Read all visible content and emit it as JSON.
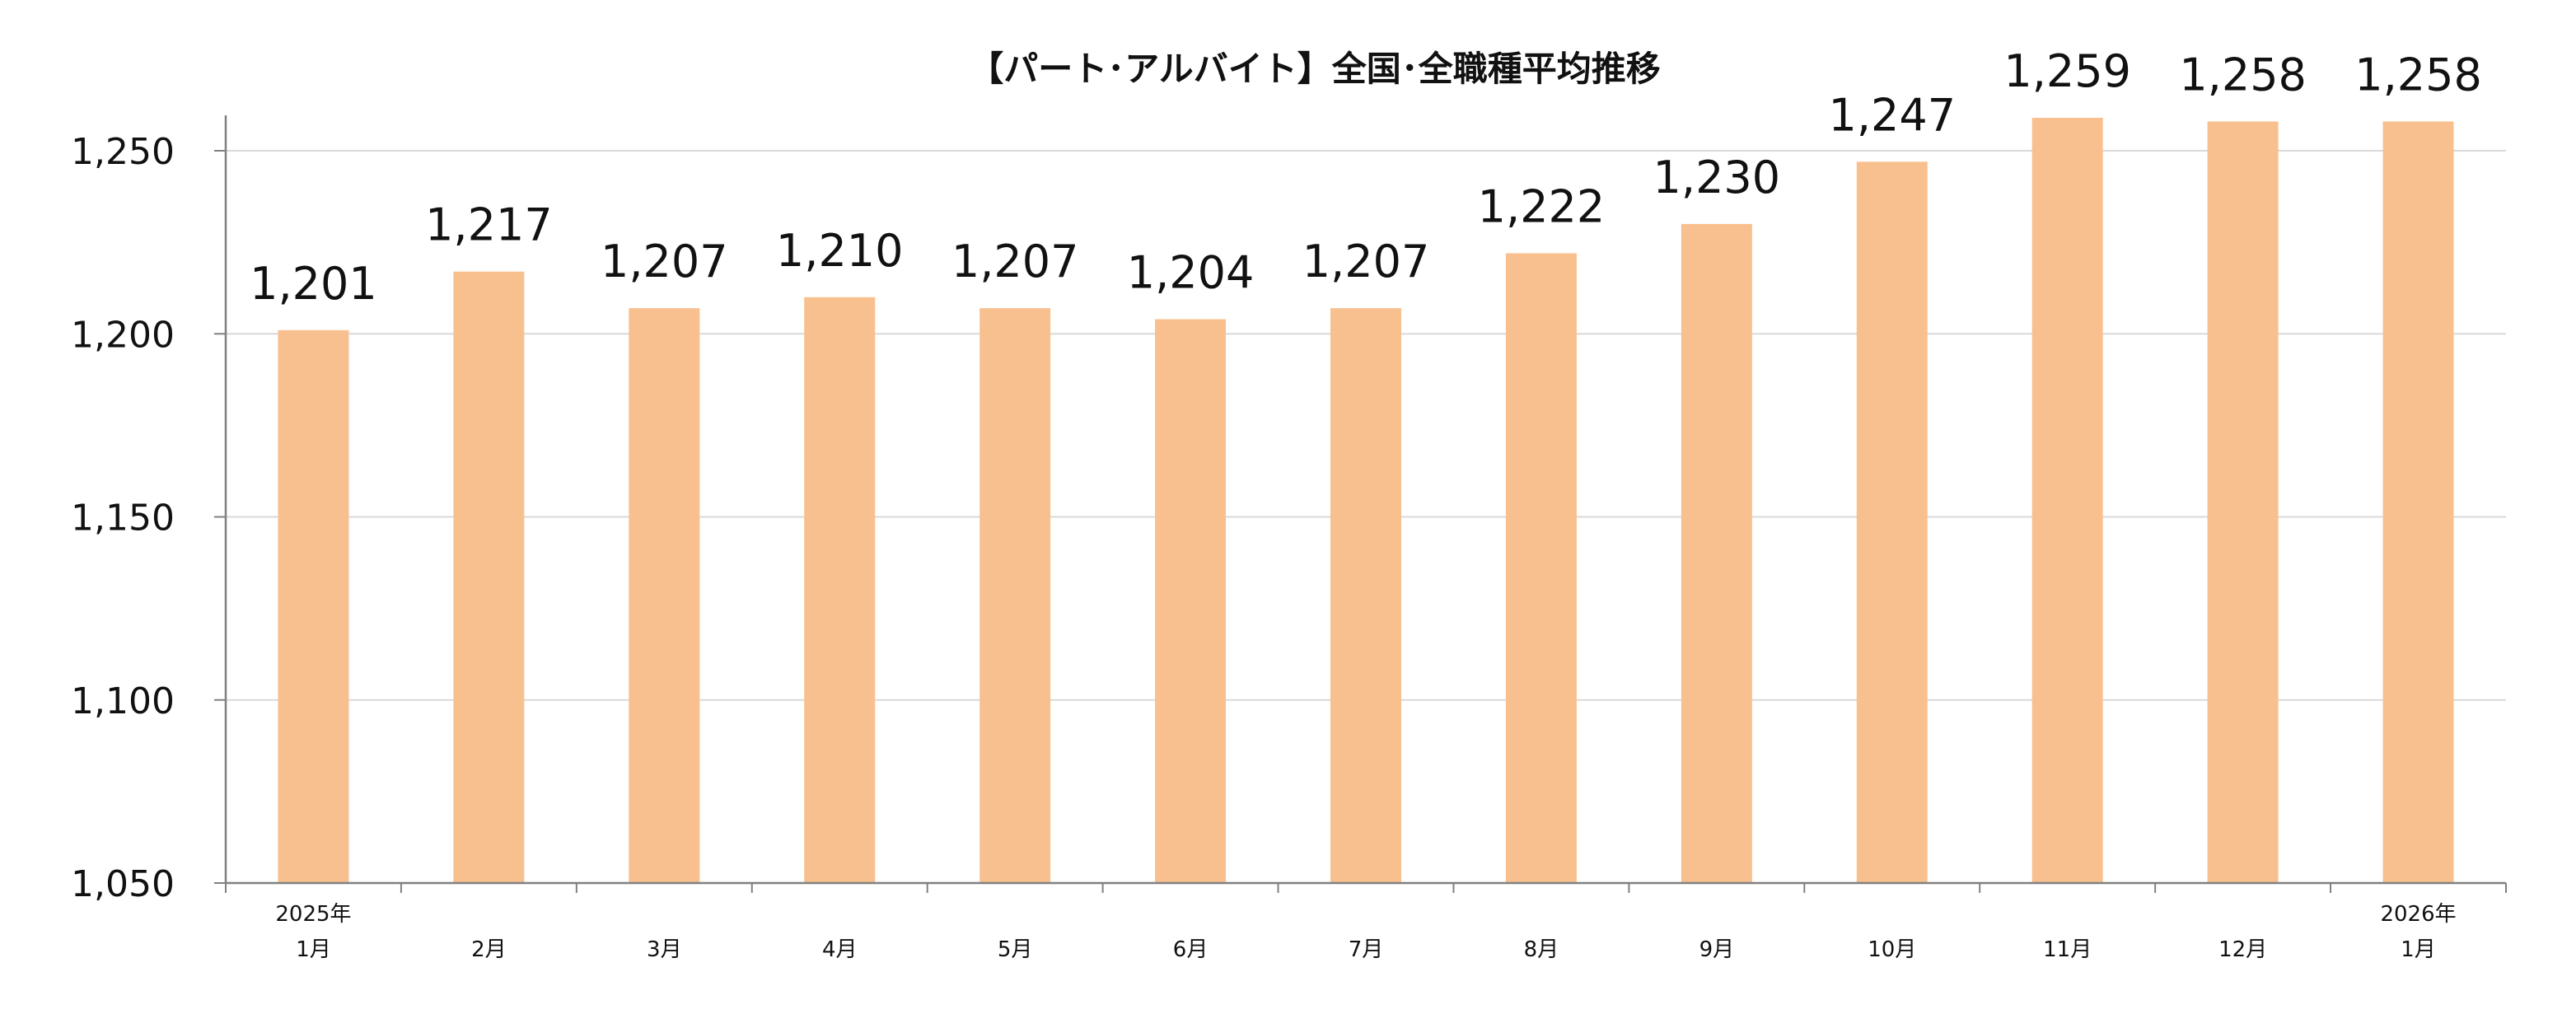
{
  "chart_data": {
    "type": "bar",
    "title": "【パート･アルバイト】全国･全職種平均推移",
    "categories": [
      "2025年 1月",
      "2月",
      "3月",
      "4月",
      "5月",
      "6月",
      "7月",
      "8月",
      "9月",
      "10月",
      "11月",
      "12月",
      "2026年 1月"
    ],
    "x_tick_lines": [
      [
        "2025年",
        "1月"
      ],
      [
        "2月"
      ],
      [
        "3月"
      ],
      [
        "4月"
      ],
      [
        "5月"
      ],
      [
        "6月"
      ],
      [
        "7月"
      ],
      [
        "8月"
      ],
      [
        "9月"
      ],
      [
        "10月"
      ],
      [
        "11月"
      ],
      [
        "12月"
      ],
      [
        "2026年",
        "1月"
      ]
    ],
    "values": [
      1201,
      1217,
      1207,
      1210,
      1207,
      1204,
      1207,
      1222,
      1230,
      1247,
      1259,
      1258,
      1258
    ],
    "data_labels": [
      "1,201",
      "1,217",
      "1,207",
      "1,210",
      "1,207",
      "1,204",
      "1,207",
      "1,222",
      "1,230",
      "1,247",
      "1,259",
      "1,258",
      "1,258"
    ],
    "ylim": [
      1050,
      1250
    ],
    "yticks": [
      1050,
      1100,
      1150,
      1200,
      1250
    ],
    "ytick_labels": [
      "1,050",
      "1,100",
      "1,150",
      "1,200",
      "1,250"
    ],
    "grid": true,
    "legend": "none",
    "xlabel": "",
    "ylabel": "",
    "colors": {
      "bar": "#f9c08f",
      "grid": "#d9d9d9",
      "axis": "#808080",
      "text": "#111111"
    }
  }
}
